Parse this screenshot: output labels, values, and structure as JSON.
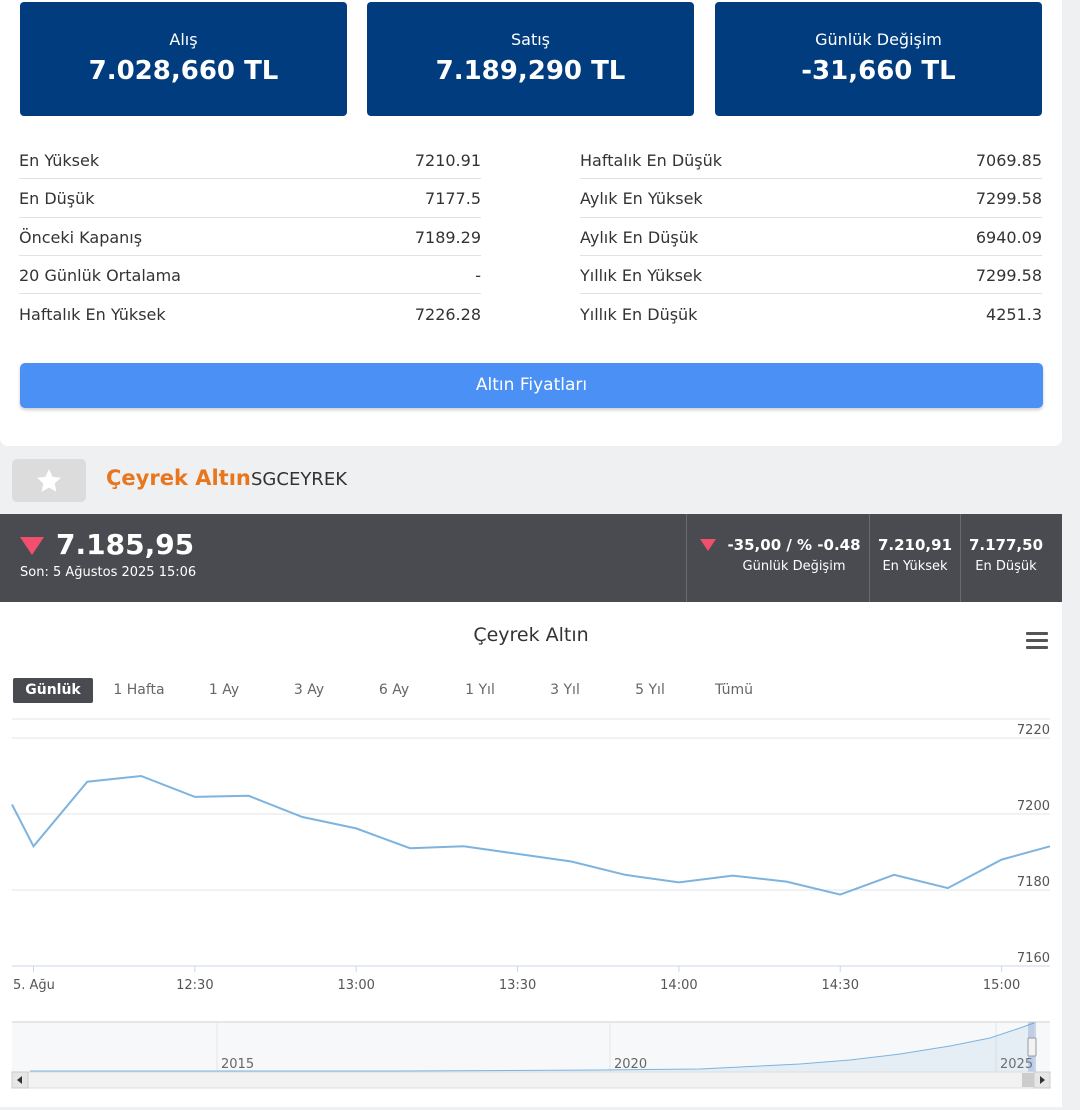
{
  "price_boxes": [
    {
      "label": "Alış",
      "value": "7.028,660 TL"
    },
    {
      "label": "Satış",
      "value": "7.189,290 TL"
    },
    {
      "label": "Günlük Değişim",
      "value": "-31,660 TL"
    }
  ],
  "stats_left": [
    {
      "label": "En Yüksek",
      "value": "7210.91"
    },
    {
      "label": "En Düşük",
      "value": "7177.5"
    },
    {
      "label": "Önceki Kapanış",
      "value": "7189.29"
    },
    {
      "label": "20 Günlük Ortalama",
      "value": "-"
    },
    {
      "label": "Haftalık En Yüksek",
      "value": "7226.28"
    }
  ],
  "stats_right": [
    {
      "label": "Haftalık En Düşük",
      "value": "7069.85"
    },
    {
      "label": "Aylık En Yüksek",
      "value": "7299.58"
    },
    {
      "label": "Aylık En Düşük",
      "value": "6940.09"
    },
    {
      "label": "Yıllık En Yüksek",
      "value": "7299.58"
    },
    {
      "label": "Yıllık En Düşük",
      "value": "4251.3"
    }
  ],
  "gold_prices_button": "Altın Fiyatları",
  "asset": {
    "name": "Çeyrek Altın",
    "code": "SGCEYREK"
  },
  "ticker": {
    "last_price": "7.185,95",
    "last_update": "Son: 5 Ağustos 2025 15:06",
    "change_value": "-35,00 / % -0.48",
    "change_label": "Günlük Değişim",
    "high_value": "7.210,91",
    "high_label": "En Yüksek",
    "low_value": "7.177,50",
    "low_label": "En Düşük",
    "down_color": "#f0506e"
  },
  "chart_ranges": [
    "Günlük",
    "1 Hafta",
    "1 Ay",
    "3 Ay",
    "6 Ay",
    "1 Yıl",
    "3 Yıl",
    "5 Yıl",
    "Tümü"
  ],
  "chart_data": {
    "type": "line",
    "title": "Çeyrek Altın",
    "x_tick_labels": [
      "5. Ağu",
      "12:30",
      "13:00",
      "13:30",
      "14:00",
      "14:30",
      "15:00"
    ],
    "x_ticks_minutes": [
      720,
      750,
      780,
      810,
      840,
      870,
      900
    ],
    "y_ticks": [
      7160,
      7180,
      7200,
      7220
    ],
    "ylim": [
      7160,
      7225
    ],
    "xlim": [
      716,
      909
    ],
    "series": [
      {
        "x": [
          716,
          720,
          730,
          740,
          750,
          760,
          770,
          780,
          790,
          800,
          810,
          820,
          830,
          840,
          850,
          860,
          870,
          880,
          890,
          900,
          909
        ],
        "values": [
          7202.5,
          7191.5,
          7208.5,
          7210.0,
          7204.5,
          7204.8,
          7199.2,
          7196.2,
          7191.0,
          7191.5,
          7189.5,
          7187.5,
          7184.0,
          7182.0,
          7183.8,
          7182.2,
          7178.8,
          7184.0,
          7180.5,
          7188.0,
          7191.5
        ]
      }
    ],
    "color": "#7db3df",
    "navigator_labels": [
      "2015",
      "2020",
      "2025"
    ],
    "grid": true
  }
}
